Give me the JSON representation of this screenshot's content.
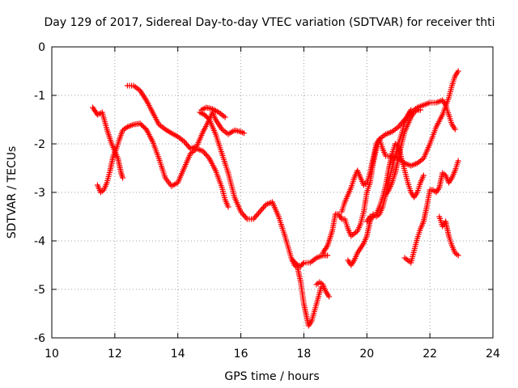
{
  "chart_data": {
    "type": "scatter",
    "title": "Day 129 of 2017, Sidereal Day-to-day VTEC variation (SDTVAR) for receiver thti",
    "xlabel": "GPS time / hours",
    "ylabel": "SDTVAR / TECUs",
    "xlim": [
      10,
      24
    ],
    "ylim": [
      -6,
      0
    ],
    "xticks": [
      "10",
      "12",
      "14",
      "16",
      "18",
      "20",
      "22",
      "24"
    ],
    "yticks": [
      "0",
      "-1",
      "-2",
      "-3",
      "-4",
      "-5",
      "-6"
    ],
    "grid": true,
    "legend": "none",
    "marker": "+",
    "color": "#ff0000",
    "series": [
      {
        "name": "trace-1",
        "points": [
          [
            11.3,
            -1.25
          ],
          [
            11.45,
            -1.4
          ],
          [
            11.6,
            -1.35
          ],
          [
            11.75,
            -1.7
          ],
          [
            11.9,
            -2.0
          ],
          [
            12.0,
            -2.15
          ],
          [
            12.1,
            -2.3
          ],
          [
            12.2,
            -2.6
          ],
          [
            12.25,
            -2.7
          ]
        ]
      },
      {
        "name": "trace-2",
        "points": [
          [
            11.45,
            -2.85
          ],
          [
            11.55,
            -3.0
          ],
          [
            11.65,
            -2.95
          ],
          [
            11.75,
            -2.8
          ],
          [
            11.85,
            -2.55
          ],
          [
            11.95,
            -2.25
          ],
          [
            12.05,
            -2.1
          ],
          [
            12.15,
            -1.9
          ],
          [
            12.25,
            -1.72
          ],
          [
            12.4,
            -1.65
          ],
          [
            12.6,
            -1.6
          ],
          [
            12.8,
            -1.58
          ],
          [
            13.0,
            -1.7
          ],
          [
            13.2,
            -1.95
          ],
          [
            13.4,
            -2.3
          ],
          [
            13.6,
            -2.7
          ],
          [
            13.8,
            -2.87
          ],
          [
            14.0,
            -2.8
          ],
          [
            14.2,
            -2.5
          ],
          [
            14.4,
            -2.2
          ],
          [
            14.6,
            -2.1
          ],
          [
            14.8,
            -2.15
          ],
          [
            15.0,
            -2.3
          ],
          [
            15.2,
            -2.55
          ],
          [
            15.4,
            -2.9
          ],
          [
            15.5,
            -3.15
          ],
          [
            15.6,
            -3.3
          ]
        ]
      },
      {
        "name": "trace-3",
        "points": [
          [
            12.4,
            -0.8
          ],
          [
            12.6,
            -0.8
          ],
          [
            12.8,
            -0.9
          ],
          [
            13.0,
            -1.1
          ],
          [
            13.2,
            -1.35
          ],
          [
            13.4,
            -1.6
          ],
          [
            13.6,
            -1.7
          ],
          [
            13.8,
            -1.78
          ],
          [
            14.0,
            -1.85
          ],
          [
            14.2,
            -1.95
          ],
          [
            14.4,
            -2.1
          ],
          [
            14.6,
            -2.05
          ],
          [
            14.8,
            -1.75
          ],
          [
            15.0,
            -1.5
          ],
          [
            15.1,
            -1.35
          ],
          [
            15.2,
            -1.5
          ],
          [
            15.4,
            -1.7
          ],
          [
            15.6,
            -1.8
          ],
          [
            15.8,
            -1.72
          ],
          [
            16.0,
            -1.75
          ],
          [
            16.1,
            -1.78
          ]
        ]
      },
      {
        "name": "trace-4",
        "points": [
          [
            14.75,
            -1.3
          ],
          [
            14.9,
            -1.25
          ],
          [
            15.1,
            -1.28
          ],
          [
            15.3,
            -1.35
          ],
          [
            15.5,
            -1.45
          ]
        ]
      },
      {
        "name": "trace-5",
        "points": [
          [
            14.7,
            -1.35
          ],
          [
            14.85,
            -1.4
          ],
          [
            15.0,
            -1.5
          ],
          [
            15.2,
            -1.8
          ],
          [
            15.4,
            -2.2
          ],
          [
            15.6,
            -2.6
          ],
          [
            15.8,
            -3.1
          ],
          [
            16.0,
            -3.4
          ],
          [
            16.2,
            -3.55
          ],
          [
            16.4,
            -3.55
          ],
          [
            16.6,
            -3.4
          ],
          [
            16.8,
            -3.25
          ],
          [
            17.0,
            -3.2
          ],
          [
            17.2,
            -3.5
          ],
          [
            17.4,
            -3.9
          ],
          [
            17.6,
            -4.35
          ],
          [
            17.7,
            -4.5
          ],
          [
            17.8,
            -4.55
          ],
          [
            17.9,
            -4.85
          ],
          [
            18.0,
            -5.3
          ],
          [
            18.1,
            -5.6
          ],
          [
            18.15,
            -5.75
          ],
          [
            18.25,
            -5.65
          ],
          [
            18.4,
            -5.3
          ],
          [
            18.55,
            -4.95
          ]
        ]
      },
      {
        "name": "trace-6",
        "points": [
          [
            17.65,
            -4.4
          ],
          [
            17.8,
            -4.5
          ],
          [
            17.9,
            -4.52
          ],
          [
            18.0,
            -4.45
          ],
          [
            18.2,
            -4.45
          ],
          [
            18.4,
            -4.35
          ],
          [
            18.6,
            -4.3
          ],
          [
            18.75,
            -4.3
          ]
        ]
      },
      {
        "name": "trace-7",
        "points": [
          [
            18.4,
            -4.9
          ],
          [
            18.5,
            -4.85
          ],
          [
            18.6,
            -4.9
          ],
          [
            18.7,
            -5.05
          ],
          [
            18.8,
            -5.15
          ]
        ]
      },
      {
        "name": "trace-8",
        "points": [
          [
            18.6,
            -4.25
          ],
          [
            18.75,
            -4.1
          ],
          [
            18.9,
            -3.8
          ],
          [
            19.0,
            -3.45
          ],
          [
            19.1,
            -3.45
          ],
          [
            19.2,
            -3.55
          ],
          [
            19.3,
            -3.55
          ],
          [
            19.4,
            -3.75
          ],
          [
            19.5,
            -3.9
          ],
          [
            19.6,
            -3.85
          ],
          [
            19.7,
            -3.8
          ],
          [
            19.8,
            -3.65
          ],
          [
            19.9,
            -3.4
          ],
          [
            20.0,
            -3.0
          ],
          [
            20.1,
            -2.8
          ],
          [
            20.2,
            -2.4
          ],
          [
            20.3,
            -2.1
          ],
          [
            20.4,
            -1.9
          ],
          [
            20.5,
            -1.85
          ],
          [
            20.6,
            -1.8
          ],
          [
            20.8,
            -1.75
          ],
          [
            21.0,
            -1.65
          ],
          [
            21.2,
            -1.5
          ],
          [
            21.4,
            -1.35
          ],
          [
            21.6,
            -1.25
          ],
          [
            21.8,
            -1.2
          ],
          [
            22.0,
            -1.15
          ],
          [
            22.2,
            -1.15
          ],
          [
            22.4,
            -1.1
          ],
          [
            22.5,
            -1.2
          ],
          [
            22.6,
            -1.4
          ],
          [
            22.7,
            -1.6
          ],
          [
            22.8,
            -1.7
          ]
        ]
      },
      {
        "name": "trace-9",
        "points": [
          [
            19.2,
            -3.4
          ],
          [
            19.3,
            -3.2
          ],
          [
            19.4,
            -3.05
          ],
          [
            19.5,
            -2.9
          ],
          [
            19.6,
            -2.7
          ],
          [
            19.7,
            -2.55
          ],
          [
            19.8,
            -2.7
          ],
          [
            19.9,
            -2.85
          ],
          [
            20.0,
            -2.8
          ],
          [
            20.1,
            -2.6
          ],
          [
            20.2,
            -2.3
          ],
          [
            20.3,
            -2.0
          ],
          [
            20.4,
            -1.9
          ],
          [
            20.5,
            -2.1
          ],
          [
            20.6,
            -2.25
          ],
          [
            20.8,
            -2.25
          ],
          [
            21.0,
            -2.3
          ],
          [
            21.2,
            -2.4
          ],
          [
            21.4,
            -2.45
          ],
          [
            21.6,
            -2.4
          ],
          [
            21.8,
            -2.3
          ],
          [
            22.0,
            -2.0
          ],
          [
            22.2,
            -1.65
          ],
          [
            22.4,
            -1.4
          ],
          [
            22.6,
            -1.05
          ],
          [
            22.7,
            -0.8
          ],
          [
            22.8,
            -0.6
          ],
          [
            22.9,
            -0.5
          ]
        ]
      },
      {
        "name": "trace-10",
        "points": [
          [
            19.4,
            -4.4
          ],
          [
            19.5,
            -4.5
          ],
          [
            19.6,
            -4.4
          ],
          [
            19.7,
            -4.25
          ],
          [
            19.8,
            -4.15
          ],
          [
            19.9,
            -4.05
          ],
          [
            20.0,
            -3.9
          ],
          [
            20.1,
            -3.6
          ],
          [
            20.2,
            -3.45
          ],
          [
            20.3,
            -3.5
          ],
          [
            20.4,
            -3.45
          ],
          [
            20.5,
            -3.3
          ],
          [
            20.6,
            -3.05
          ],
          [
            20.7,
            -2.75
          ],
          [
            20.8,
            -2.5
          ],
          [
            20.9,
            -2.25
          ],
          [
            21.0,
            -2.0
          ],
          [
            21.1,
            -1.8
          ],
          [
            21.2,
            -1.55
          ],
          [
            21.3,
            -1.4
          ],
          [
            21.4,
            -1.3
          ]
        ]
      },
      {
        "name": "trace-11",
        "points": [
          [
            20.0,
            -3.6
          ],
          [
            20.1,
            -3.5
          ],
          [
            20.2,
            -3.5
          ],
          [
            20.3,
            -3.45
          ],
          [
            20.4,
            -3.3
          ],
          [
            20.5,
            -3.1
          ],
          [
            20.6,
            -2.85
          ],
          [
            20.7,
            -2.5
          ],
          [
            20.8,
            -2.2
          ],
          [
            20.9,
            -2.0
          ],
          [
            21.0,
            -2.05
          ],
          [
            21.1,
            -2.3
          ],
          [
            21.2,
            -2.55
          ],
          [
            21.3,
            -2.8
          ],
          [
            21.4,
            -3.0
          ],
          [
            21.5,
            -3.1
          ],
          [
            21.6,
            -3.0
          ],
          [
            21.7,
            -2.8
          ],
          [
            21.8,
            -2.65
          ]
        ]
      },
      {
        "name": "trace-12",
        "points": [
          [
            20.6,
            -3.05
          ],
          [
            20.7,
            -2.95
          ],
          [
            20.8,
            -2.8
          ],
          [
            20.9,
            -2.6
          ],
          [
            21.0,
            -2.3
          ],
          [
            21.1,
            -2.0
          ],
          [
            21.2,
            -1.75
          ],
          [
            21.3,
            -1.6
          ],
          [
            21.4,
            -1.45
          ],
          [
            21.5,
            -1.35
          ],
          [
            21.6,
            -1.3
          ],
          [
            21.7,
            -1.3
          ]
        ]
      },
      {
        "name": "trace-13",
        "points": [
          [
            21.2,
            -4.35
          ],
          [
            21.3,
            -4.4
          ],
          [
            21.4,
            -4.45
          ],
          [
            21.5,
            -4.2
          ],
          [
            21.6,
            -3.95
          ],
          [
            21.7,
            -3.75
          ],
          [
            21.8,
            -3.6
          ],
          [
            21.9,
            -3.3
          ],
          [
            22.0,
            -2.95
          ],
          [
            22.1,
            -2.95
          ],
          [
            22.2,
            -3.0
          ],
          [
            22.3,
            -2.9
          ],
          [
            22.4,
            -2.6
          ],
          [
            22.5,
            -2.65
          ],
          [
            22.6,
            -2.8
          ],
          [
            22.7,
            -2.7
          ],
          [
            22.8,
            -2.55
          ],
          [
            22.9,
            -2.35
          ]
        ]
      },
      {
        "name": "trace-14",
        "points": [
          [
            22.3,
            -3.5
          ],
          [
            22.4,
            -3.7
          ],
          [
            22.5,
            -3.6
          ],
          [
            22.6,
            -3.9
          ],
          [
            22.7,
            -4.1
          ],
          [
            22.8,
            -4.25
          ],
          [
            22.9,
            -4.3
          ]
        ]
      }
    ]
  }
}
